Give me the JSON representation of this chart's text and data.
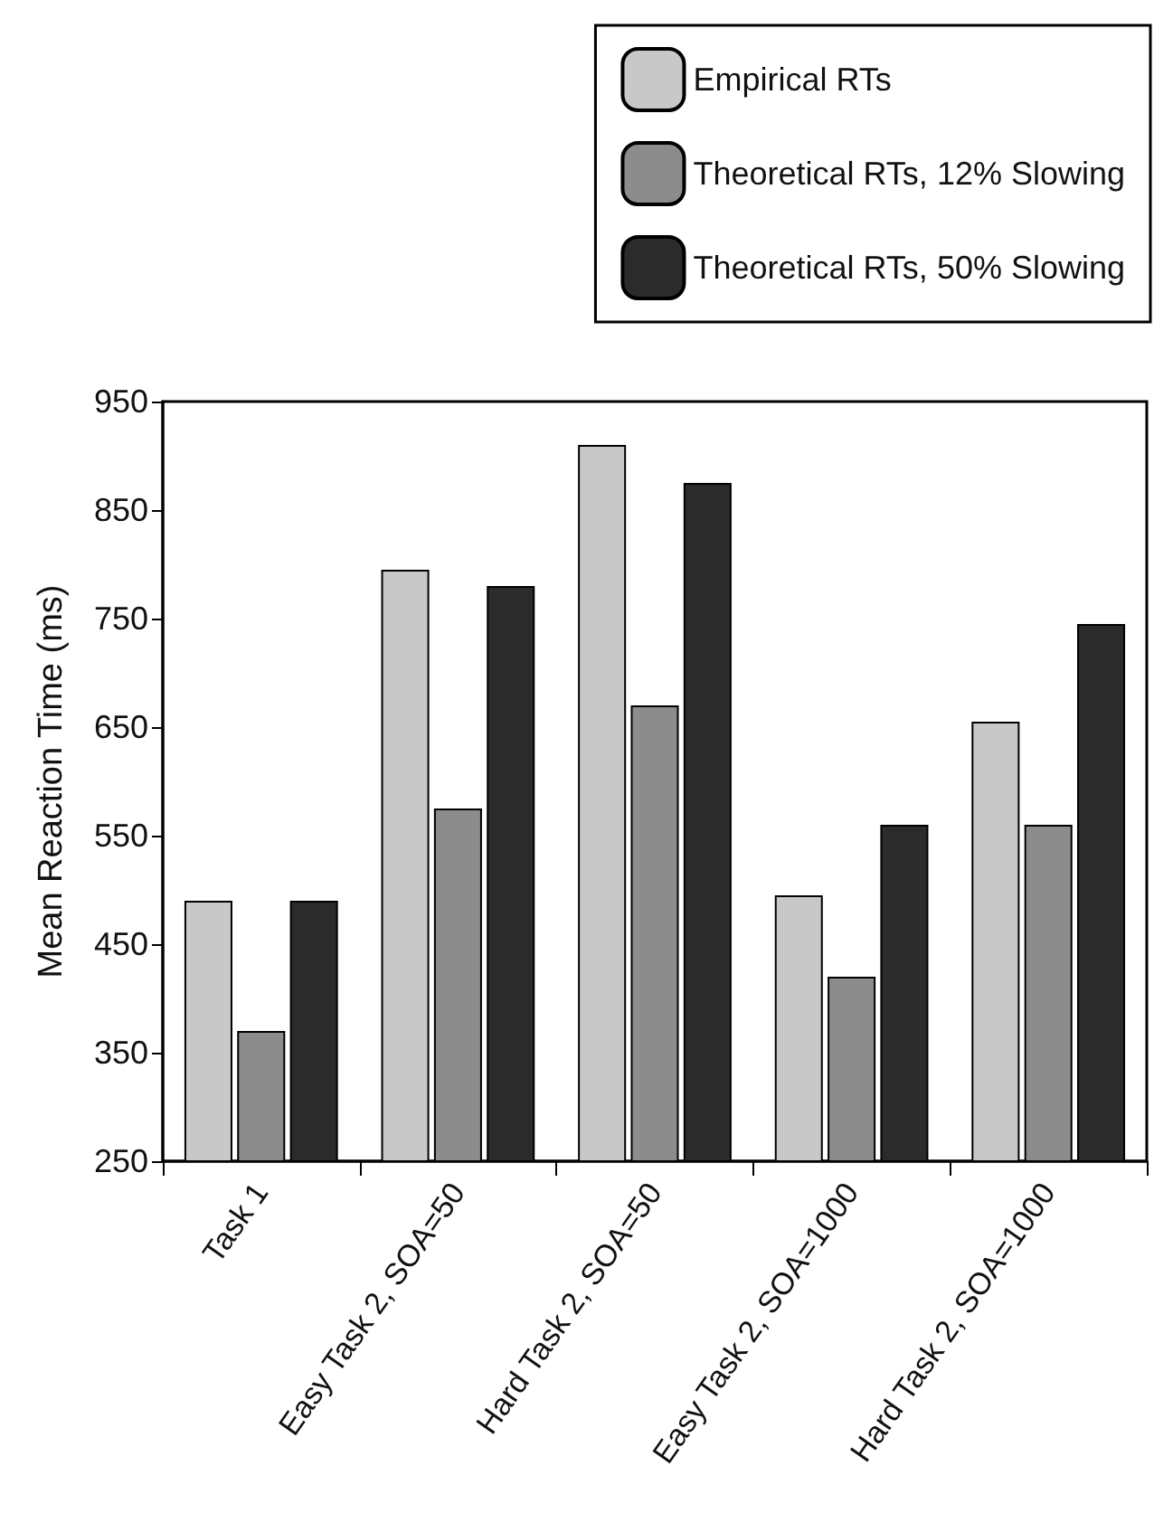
{
  "chart_data": {
    "type": "bar",
    "ylabel": "Mean Reaction Time (ms)",
    "categories": [
      "Task 1",
      "Easy Task 2, SOA=50",
      "Hard Task 2, SOA=50",
      "Easy Task 2, SOA=1000",
      "Hard Task 2, SOA=1000"
    ],
    "series": [
      {
        "name": "Empirical RTs",
        "color": "#c8c8c8",
        "values": [
          490,
          795,
          910,
          495,
          655
        ]
      },
      {
        "name": "Theoretical RTs, 12% Slowing",
        "color": "#8c8c8c",
        "values": [
          370,
          575,
          670,
          420,
          560
        ]
      },
      {
        "name": "Theoretical RTs, 50% Slowing",
        "color": "#2b2b2b",
        "values": [
          490,
          780,
          875,
          560,
          745
        ]
      }
    ],
    "ylim": [
      250,
      950
    ],
    "yticks": [
      250,
      350,
      450,
      550,
      650,
      750,
      850,
      950
    ],
    "grid": false,
    "legend": "top right"
  }
}
